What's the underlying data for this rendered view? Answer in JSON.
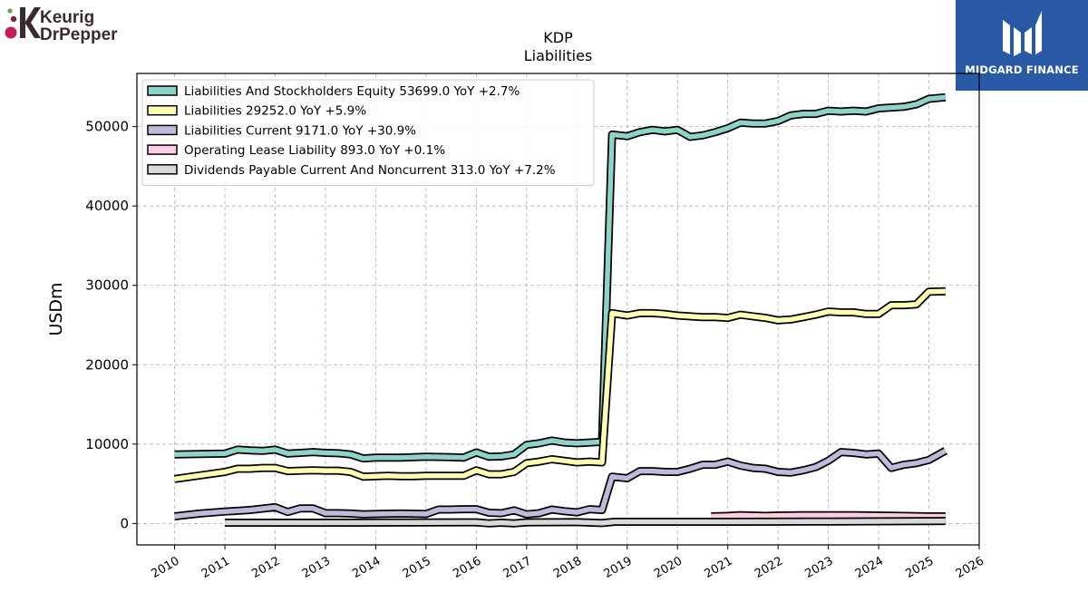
{
  "logos": {
    "left_line1": "Keurig",
    "left_line2": "DrPepper",
    "right_text": "MIDGARD FINANCE"
  },
  "chart_data": {
    "type": "line",
    "title": "KDP",
    "subtitle": "Liabilities",
    "xlabel": "",
    "ylabel": "USDm",
    "xlim": [
      2009.25,
      2026.0
    ],
    "ylim": [
      -2700,
      56700
    ],
    "grid": true,
    "legend_position": "top-left",
    "x_ticks": [
      2010,
      2011,
      2012,
      2013,
      2014,
      2015,
      2016,
      2017,
      2018,
      2019,
      2020,
      2021,
      2022,
      2023,
      2024,
      2025,
      2026
    ],
    "y_ticks": [
      0,
      10000,
      20000,
      30000,
      40000,
      50000
    ],
    "series": [
      {
        "name": "Liabilities And Stockholders Equity",
        "legend": "Liabilities And Stockholders Equity  53699.0 YoY +2.7%",
        "color": "#8dd3c7",
        "points": [
          [
            2010.0,
            8700
          ],
          [
            2010.5,
            8750
          ],
          [
            2011.0,
            8800
          ],
          [
            2011.25,
            9300
          ],
          [
            2011.5,
            9200
          ],
          [
            2011.75,
            9150
          ],
          [
            2012.0,
            9300
          ],
          [
            2012.25,
            8800
          ],
          [
            2012.5,
            8900
          ],
          [
            2012.75,
            9000
          ],
          [
            2013.0,
            8900
          ],
          [
            2013.25,
            8850
          ],
          [
            2013.5,
            8700
          ],
          [
            2013.75,
            8200
          ],
          [
            2014.0,
            8300
          ],
          [
            2014.5,
            8300
          ],
          [
            2015.0,
            8400
          ],
          [
            2015.5,
            8350
          ],
          [
            2015.75,
            8300
          ],
          [
            2016.0,
            8950
          ],
          [
            2016.25,
            8400
          ],
          [
            2016.5,
            8450
          ],
          [
            2016.75,
            8700
          ],
          [
            2017.0,
            9900
          ],
          [
            2017.25,
            10100
          ],
          [
            2017.5,
            10450
          ],
          [
            2017.75,
            10200
          ],
          [
            2018.0,
            10100
          ],
          [
            2018.25,
            10200
          ],
          [
            2018.5,
            10300
          ],
          [
            2018.7,
            49000
          ],
          [
            2019.0,
            48800
          ],
          [
            2019.25,
            49300
          ],
          [
            2019.5,
            49600
          ],
          [
            2019.75,
            49400
          ],
          [
            2020.0,
            49600
          ],
          [
            2020.25,
            48700
          ],
          [
            2020.5,
            48900
          ],
          [
            2020.75,
            49300
          ],
          [
            2021.0,
            49800
          ],
          [
            2021.25,
            50500
          ],
          [
            2021.5,
            50400
          ],
          [
            2021.75,
            50400
          ],
          [
            2022.0,
            50700
          ],
          [
            2022.25,
            51400
          ],
          [
            2022.5,
            51600
          ],
          [
            2022.75,
            51600
          ],
          [
            2023.0,
            52000
          ],
          [
            2023.25,
            51900
          ],
          [
            2023.5,
            52000
          ],
          [
            2023.75,
            51900
          ],
          [
            2024.0,
            52300
          ],
          [
            2024.25,
            52400
          ],
          [
            2024.5,
            52500
          ],
          [
            2024.75,
            52800
          ],
          [
            2025.0,
            53500
          ],
          [
            2025.33,
            53699
          ]
        ]
      },
      {
        "name": "Liabilities",
        "legend": "Liabilities  29252.0 YoY +5.9%",
        "color": "#ffffb3",
        "points": [
          [
            2010.0,
            5600
          ],
          [
            2010.5,
            6050
          ],
          [
            2011.0,
            6500
          ],
          [
            2011.25,
            6900
          ],
          [
            2011.5,
            6900
          ],
          [
            2011.75,
            7000
          ],
          [
            2012.0,
            7000
          ],
          [
            2012.25,
            6600
          ],
          [
            2012.5,
            6650
          ],
          [
            2012.75,
            6700
          ],
          [
            2013.0,
            6650
          ],
          [
            2013.25,
            6650
          ],
          [
            2013.5,
            6500
          ],
          [
            2013.75,
            5900
          ],
          [
            2014.0,
            5950
          ],
          [
            2014.25,
            6000
          ],
          [
            2014.5,
            5950
          ],
          [
            2014.75,
            5950
          ],
          [
            2015.0,
            6000
          ],
          [
            2015.5,
            6000
          ],
          [
            2015.75,
            6000
          ],
          [
            2016.0,
            6700
          ],
          [
            2016.25,
            6200
          ],
          [
            2016.5,
            6200
          ],
          [
            2016.75,
            6500
          ],
          [
            2017.0,
            7600
          ],
          [
            2017.25,
            7800
          ],
          [
            2017.5,
            8100
          ],
          [
            2017.75,
            7900
          ],
          [
            2018.0,
            7700
          ],
          [
            2018.25,
            7800
          ],
          [
            2018.5,
            7700
          ],
          [
            2018.7,
            26500
          ],
          [
            2019.0,
            26200
          ],
          [
            2019.25,
            26500
          ],
          [
            2019.5,
            26500
          ],
          [
            2019.75,
            26400
          ],
          [
            2020.0,
            26200
          ],
          [
            2020.25,
            26100
          ],
          [
            2020.5,
            26000
          ],
          [
            2020.75,
            26000
          ],
          [
            2021.0,
            25900
          ],
          [
            2021.25,
            26300
          ],
          [
            2021.5,
            26100
          ],
          [
            2021.75,
            25900
          ],
          [
            2022.0,
            25600
          ],
          [
            2022.25,
            25700
          ],
          [
            2022.5,
            26000
          ],
          [
            2022.75,
            26300
          ],
          [
            2023.0,
            26700
          ],
          [
            2023.25,
            26600
          ],
          [
            2023.5,
            26600
          ],
          [
            2023.75,
            26400
          ],
          [
            2024.0,
            26400
          ],
          [
            2024.25,
            27500
          ],
          [
            2024.5,
            27500
          ],
          [
            2024.75,
            27600
          ],
          [
            2025.0,
            29200
          ],
          [
            2025.33,
            29252
          ]
        ]
      },
      {
        "name": "Liabilities Current",
        "legend": "Liabilities Current  9171.0 YoY +30.9%",
        "color": "#bebada",
        "points": [
          [
            2010.0,
            900
          ],
          [
            2010.5,
            1250
          ],
          [
            2011.0,
            1500
          ],
          [
            2011.5,
            1700
          ],
          [
            2012.0,
            2050
          ],
          [
            2012.25,
            1450
          ],
          [
            2012.5,
            1900
          ],
          [
            2012.75,
            1900
          ],
          [
            2013.0,
            1300
          ],
          [
            2013.25,
            1300
          ],
          [
            2013.5,
            1250
          ],
          [
            2013.75,
            1150
          ],
          [
            2014.0,
            1200
          ],
          [
            2014.5,
            1250
          ],
          [
            2015.0,
            1200
          ],
          [
            2015.25,
            1750
          ],
          [
            2015.5,
            1750
          ],
          [
            2015.75,
            1800
          ],
          [
            2016.0,
            1800
          ],
          [
            2016.25,
            1350
          ],
          [
            2016.5,
            1300
          ],
          [
            2016.75,
            1650
          ],
          [
            2017.0,
            1150
          ],
          [
            2017.25,
            1300
          ],
          [
            2017.5,
            1750
          ],
          [
            2017.75,
            1550
          ],
          [
            2018.0,
            1400
          ],
          [
            2018.25,
            1800
          ],
          [
            2018.5,
            1700
          ],
          [
            2018.7,
            5900
          ],
          [
            2019.0,
            5700
          ],
          [
            2019.25,
            6600
          ],
          [
            2019.5,
            6600
          ],
          [
            2019.75,
            6500
          ],
          [
            2020.0,
            6500
          ],
          [
            2020.25,
            6900
          ],
          [
            2020.5,
            7400
          ],
          [
            2020.75,
            7400
          ],
          [
            2021.0,
            7800
          ],
          [
            2021.25,
            7300
          ],
          [
            2021.5,
            7000
          ],
          [
            2021.75,
            6900
          ],
          [
            2022.0,
            6500
          ],
          [
            2022.25,
            6400
          ],
          [
            2022.5,
            6700
          ],
          [
            2022.75,
            7100
          ],
          [
            2023.0,
            7900
          ],
          [
            2023.25,
            9000
          ],
          [
            2023.5,
            8900
          ],
          [
            2023.75,
            8700
          ],
          [
            2024.0,
            8800
          ],
          [
            2024.25,
            7000
          ],
          [
            2024.5,
            7400
          ],
          [
            2024.75,
            7600
          ],
          [
            2025.0,
            8000
          ],
          [
            2025.33,
            9171
          ]
        ]
      },
      {
        "name": "Operating Lease Liability",
        "legend": "Operating Lease Liability  893.0 YoY +0.1%",
        "color": "#fccde5",
        "points": [
          [
            2020.67,
            900
          ],
          [
            2021.0,
            950
          ],
          [
            2021.25,
            1050
          ],
          [
            2021.5,
            1000
          ],
          [
            2021.75,
            950
          ],
          [
            2022.0,
            1000
          ],
          [
            2022.5,
            1050
          ],
          [
            2023.0,
            1050
          ],
          [
            2023.5,
            1050
          ],
          [
            2024.0,
            1000
          ],
          [
            2024.5,
            950
          ],
          [
            2025.0,
            900
          ],
          [
            2025.33,
            893
          ]
        ]
      },
      {
        "name": "Dividends Payable Current And Noncurrent",
        "legend": "Dividends Payable Current And Noncurrent  313.0 YoY +7.2%",
        "color": "#d9d9d9",
        "points": [
          [
            2011.0,
            100
          ],
          [
            2012.0,
            100
          ],
          [
            2013.0,
            100
          ],
          [
            2014.0,
            110
          ],
          [
            2015.0,
            130
          ],
          [
            2016.0,
            150
          ],
          [
            2016.25,
            20
          ],
          [
            2016.5,
            100
          ],
          [
            2016.75,
            20
          ],
          [
            2017.0,
            150
          ],
          [
            2017.5,
            160
          ],
          [
            2018.0,
            170
          ],
          [
            2018.5,
            50
          ],
          [
            2018.75,
            210
          ],
          [
            2019.0,
            210
          ],
          [
            2020.0,
            210
          ],
          [
            2021.0,
            210
          ],
          [
            2022.0,
            230
          ],
          [
            2023.0,
            250
          ],
          [
            2024.0,
            270
          ],
          [
            2025.0,
            300
          ],
          [
            2025.33,
            313
          ]
        ]
      }
    ]
  }
}
